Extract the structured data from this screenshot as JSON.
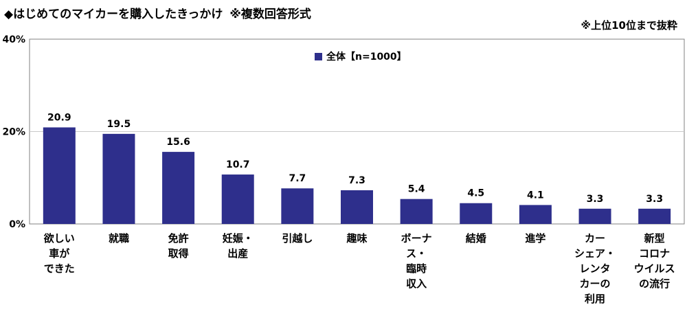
{
  "title": "◆はじめてのマイカーを購入したきっかけ",
  "subtitle": "※複数回答形式",
  "note": "※上位10位まで抜粋",
  "colors": {
    "bar": "#2e2f8c",
    "grid": "#c8c8c8",
    "axis": "#808080"
  },
  "chart_data": {
    "type": "bar",
    "title": "◆はじめてのマイカーを購入したきっかけ",
    "subtitle": "※複数回答形式",
    "ylim": [
      0,
      40
    ],
    "yticks": [
      "0%",
      "20%",
      "40%"
    ],
    "ytick_values": [
      0,
      20,
      40
    ],
    "legend": "全体【n=1000】",
    "legend_position": "top-center",
    "grid": true,
    "categories": [
      [
        "欲しい",
        "車が",
        "できた"
      ],
      [
        "就職"
      ],
      [
        "免許",
        "取得"
      ],
      [
        "妊娠・",
        "出産"
      ],
      [
        "引越し"
      ],
      [
        "趣味"
      ],
      [
        "ボーナ",
        "ス・",
        "臨時",
        "収入"
      ],
      [
        "結婚"
      ],
      [
        "進学"
      ],
      [
        "カー",
        "シェア・",
        "レンタ",
        "カーの",
        "利用"
      ],
      [
        "新型",
        "コロナ",
        "ウイルス",
        "の流行"
      ]
    ],
    "series": [
      {
        "name": "全体【n=1000】",
        "values": [
          20.9,
          19.5,
          15.6,
          10.7,
          7.7,
          7.3,
          5.4,
          4.5,
          4.1,
          3.3,
          3.3
        ],
        "labels": [
          "20.9",
          "19.5",
          "15.6",
          "10.7",
          "7.7",
          "7.3",
          "5.4",
          "4.5",
          "4.1",
          "3.3",
          "3.3"
        ]
      }
    ]
  }
}
